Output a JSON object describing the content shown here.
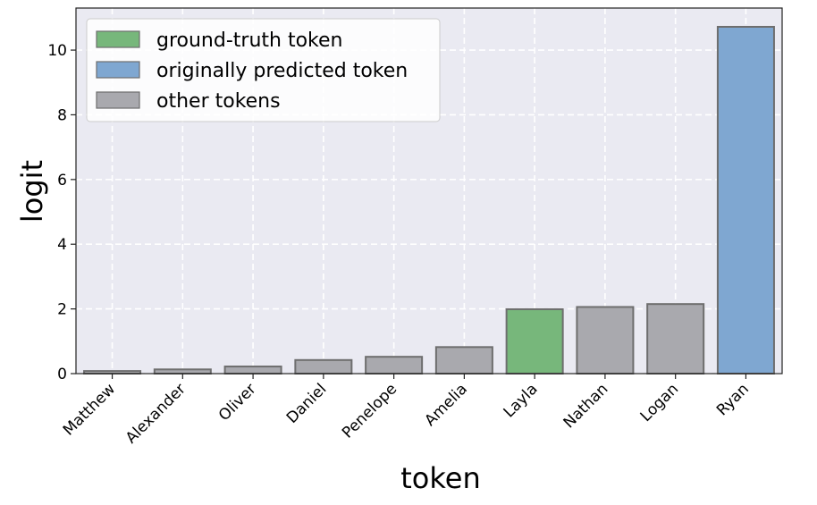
{
  "chart_data": {
    "type": "bar",
    "categories": [
      "Matthew",
      "Alexander",
      "Oliver",
      "Daniel",
      "Penelope",
      "Amelia",
      "Layla",
      "Nathan",
      "Logan",
      "Ryan"
    ],
    "values": [
      0.08,
      0.13,
      0.22,
      0.42,
      0.52,
      0.82,
      1.99,
      2.06,
      2.15,
      10.72
    ],
    "bar_kinds": [
      "other",
      "other",
      "other",
      "other",
      "other",
      "other",
      "ground_truth",
      "other",
      "other",
      "predicted"
    ],
    "xlabel": "token",
    "ylabel": "logit",
    "ylim": [
      0,
      11.3
    ],
    "yticks": [
      0,
      2,
      4,
      6,
      8,
      10
    ],
    "grid": true,
    "legend": {
      "placement": "top-left",
      "entries": [
        {
          "kind": "ground_truth",
          "label": "ground-truth token"
        },
        {
          "kind": "predicted",
          "label": "originally predicted token"
        },
        {
          "kind": "other",
          "label": "other tokens"
        }
      ]
    },
    "colors": {
      "ground_truth": "#77b77b",
      "predicted": "#7fa7d1",
      "other": "#a9a9ae",
      "edge": "#6e6e6e",
      "plot_background": "#eaeaf2",
      "grid": "#ffffff"
    }
  }
}
